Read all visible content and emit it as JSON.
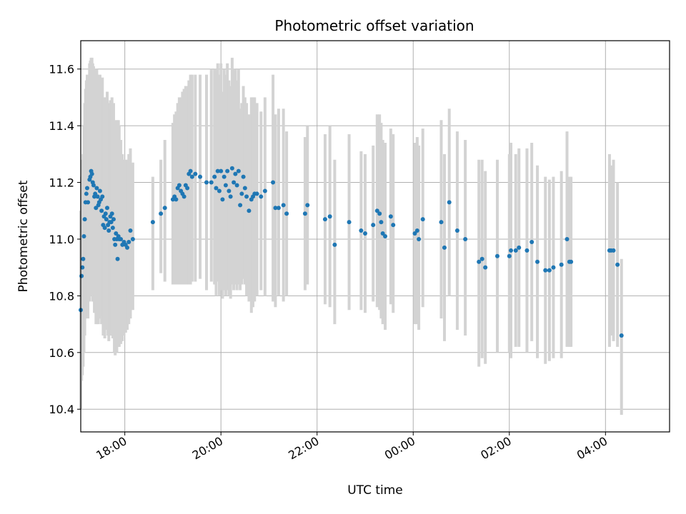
{
  "chart_data": {
    "type": "scatter",
    "title": "Photometric offset variation",
    "xlabel": "UTC time",
    "ylabel": "Photometric offset",
    "x_tick_labels": [
      "18:00",
      "20:00",
      "22:00",
      "00:00",
      "02:00",
      "04:00"
    ],
    "x_tick_hours": [
      18,
      20,
      22,
      24,
      26,
      28
    ],
    "y_tick_labels": [
      "10.4",
      "10.6",
      "10.8",
      "11.0",
      "11.2",
      "11.4",
      "11.6"
    ],
    "y_ticks": [
      10.4,
      10.6,
      10.8,
      11.0,
      11.2,
      11.4,
      11.6
    ],
    "xlim": [
      "17:05",
      "29:20"
    ],
    "ylim": [
      10.32,
      11.7
    ],
    "grid": true,
    "colors": {
      "points": "#1f77b4",
      "errorbars": "#d3d3d3",
      "grid": "#b0b0b0"
    },
    "series": [
      {
        "values_note_hidden": "",
        "points": [
          [
            "17:05",
            10.75,
            10.4,
            11.1
          ],
          [
            "17:06",
            10.87,
            10.5,
            11.22
          ],
          [
            "17:07",
            10.9,
            10.52,
            11.28
          ],
          [
            "17:08",
            10.93,
            10.55,
            11.3
          ],
          [
            "17:09",
            11.01,
            10.6,
            11.4
          ],
          [
            "17:10",
            11.07,
            10.66,
            11.48
          ],
          [
            "17:11",
            11.13,
            10.72,
            11.53
          ],
          [
            "17:12",
            11.16,
            10.75,
            11.56
          ],
          [
            "17:13",
            11.18,
            10.76,
            11.58
          ],
          [
            "17:14",
            11.13,
            10.72,
            11.55
          ],
          [
            "17:16",
            11.21,
            10.78,
            11.62
          ],
          [
            "17:17",
            11.22,
            10.8,
            11.63
          ],
          [
            "17:18",
            11.24,
            10.82,
            11.64
          ],
          [
            "17:19",
            11.23,
            10.8,
            11.64
          ],
          [
            "17:20",
            11.2,
            10.78,
            11.62
          ],
          [
            "17:21",
            11.19,
            10.78,
            11.61
          ],
          [
            "17:22",
            11.15,
            10.74,
            11.58
          ],
          [
            "17:23",
            11.16,
            10.74,
            11.6
          ],
          [
            "17:24",
            11.11,
            10.7,
            11.55
          ],
          [
            "17:25",
            11.18,
            10.76,
            11.6
          ],
          [
            "17:26",
            11.15,
            10.73,
            11.58
          ],
          [
            "17:27",
            11.12,
            10.7,
            11.55
          ],
          [
            "17:28",
            11.13,
            10.72,
            11.56
          ],
          [
            "17:29",
            11.17,
            10.75,
            11.58
          ],
          [
            "17:30",
            11.14,
            10.72,
            11.56
          ],
          [
            "17:31",
            11.1,
            10.7,
            11.52
          ],
          [
            "17:32",
            11.15,
            10.73,
            11.57
          ],
          [
            "17:33",
            11.05,
            10.66,
            11.46
          ],
          [
            "17:34",
            11.08,
            10.68,
            11.5
          ],
          [
            "17:35",
            11.04,
            10.65,
            11.45
          ],
          [
            "17:36",
            11.09,
            10.68,
            11.5
          ],
          [
            "17:37",
            11.07,
            10.68,
            11.48
          ],
          [
            "17:38",
            11.11,
            10.7,
            11.52
          ],
          [
            "17:39",
            11.05,
            10.66,
            11.46
          ],
          [
            "17:40",
            11.03,
            10.64,
            11.44
          ],
          [
            "17:41",
            11.06,
            10.66,
            11.48
          ],
          [
            "17:42",
            11.08,
            10.68,
            11.49
          ],
          [
            "17:43",
            11.06,
            10.66,
            11.46
          ],
          [
            "17:44",
            11.09,
            10.68,
            11.5
          ],
          [
            "17:45",
            11.04,
            10.65,
            11.44
          ],
          [
            "17:46",
            11.07,
            10.67,
            11.48
          ],
          [
            "17:47",
            11.0,
            10.6,
            11.4
          ],
          [
            "17:48",
            10.98,
            10.59,
            11.38
          ],
          [
            "17:49",
            11.02,
            10.62,
            11.42
          ],
          [
            "17:50",
            11.0,
            10.6,
            11.4
          ],
          [
            "17:51",
            10.93,
            10.62,
            11.3
          ],
          [
            "17:52",
            11.01,
            10.62,
            11.42
          ],
          [
            "17:53",
            11.0,
            10.62,
            11.4
          ],
          [
            "17:55",
            11.0,
            10.63,
            11.35
          ],
          [
            "17:57",
            10.98,
            10.64,
            11.3
          ],
          [
            "17:59",
            10.99,
            10.66,
            11.28
          ],
          [
            "18:01",
            10.98,
            10.67,
            11.28
          ],
          [
            "18:03",
            10.97,
            10.68,
            11.28
          ],
          [
            "18:05",
            10.99,
            10.7,
            11.3
          ],
          [
            "18:07",
            11.03,
            10.72,
            11.32
          ],
          [
            "18:10",
            11.0,
            10.75,
            11.27
          ],
          [
            "18:35",
            11.06,
            10.82,
            11.22
          ],
          [
            "18:45",
            11.09,
            10.88,
            11.28
          ],
          [
            "18:50",
            11.11,
            10.85,
            11.35
          ],
          [
            "19:00",
            11.14,
            10.84,
            11.41
          ],
          [
            "19:02",
            11.15,
            10.84,
            11.44
          ],
          [
            "19:04",
            11.14,
            10.84,
            11.45
          ],
          [
            "19:06",
            11.18,
            10.84,
            11.48
          ],
          [
            "19:08",
            11.19,
            10.84,
            11.5
          ],
          [
            "19:10",
            11.17,
            10.84,
            11.5
          ],
          [
            "19:12",
            11.16,
            10.84,
            11.52
          ],
          [
            "19:14",
            11.15,
            10.84,
            11.53
          ],
          [
            "19:16",
            11.19,
            10.84,
            11.54
          ],
          [
            "19:18",
            11.18,
            10.84,
            11.54
          ],
          [
            "19:20",
            11.23,
            10.84,
            11.56
          ],
          [
            "19:22",
            11.24,
            10.84,
            11.58
          ],
          [
            "19:24",
            11.22,
            10.85,
            11.58
          ],
          [
            "19:28",
            11.23,
            10.85,
            11.58
          ],
          [
            "19:34",
            11.22,
            10.86,
            11.58
          ],
          [
            "19:42",
            11.2,
            10.82,
            11.58
          ],
          [
            "19:48",
            11.2,
            10.85,
            11.6
          ],
          [
            "19:52",
            11.22,
            10.84,
            11.6
          ],
          [
            "19:54",
            11.18,
            10.8,
            11.6
          ],
          [
            "19:56",
            11.24,
            10.85,
            11.62
          ],
          [
            "19:58",
            11.17,
            10.8,
            11.58
          ],
          [
            "20:00",
            11.24,
            10.82,
            11.62
          ],
          [
            "20:02",
            11.14,
            10.79,
            11.52
          ],
          [
            "20:04",
            11.22,
            10.82,
            11.6
          ],
          [
            "20:06",
            11.19,
            10.8,
            11.58
          ],
          [
            "20:08",
            11.24,
            10.82,
            11.62
          ],
          [
            "20:10",
            11.17,
            10.8,
            11.56
          ],
          [
            "20:12",
            11.15,
            10.79,
            11.54
          ],
          [
            "20:14",
            11.25,
            10.84,
            11.64
          ],
          [
            "20:16",
            11.2,
            10.82,
            11.6
          ],
          [
            "20:18",
            11.23,
            10.84,
            11.6
          ],
          [
            "20:20",
            11.19,
            10.82,
            11.56
          ],
          [
            "20:22",
            11.24,
            10.84,
            11.6
          ],
          [
            "20:24",
            11.12,
            10.82,
            11.46
          ],
          [
            "20:26",
            11.16,
            10.84,
            11.48
          ],
          [
            "20:28",
            11.22,
            10.86,
            11.54
          ],
          [
            "20:30",
            11.18,
            10.84,
            11.5
          ],
          [
            "20:32",
            11.15,
            10.8,
            11.48
          ],
          [
            "20:35",
            11.1,
            10.78,
            11.44
          ],
          [
            "20:38",
            11.14,
            10.74,
            11.5
          ],
          [
            "20:40",
            11.15,
            10.76,
            11.5
          ],
          [
            "20:42",
            11.16,
            10.78,
            11.5
          ],
          [
            "20:45",
            11.16,
            10.8,
            11.48
          ],
          [
            "20:50",
            11.15,
            10.82,
            11.45
          ],
          [
            "20:55",
            11.17,
            10.8,
            11.5
          ],
          [
            "21:05",
            11.2,
            10.78,
            11.58
          ],
          [
            "21:08",
            11.11,
            10.76,
            11.44
          ],
          [
            "21:12",
            11.11,
            10.8,
            11.46
          ],
          [
            "21:18",
            11.12,
            10.78,
            11.46
          ],
          [
            "21:22",
            11.09,
            10.8,
            11.38
          ],
          [
            "21:45",
            11.09,
            10.82,
            11.36
          ],
          [
            "21:48",
            11.12,
            10.84,
            11.4
          ],
          [
            "22:10",
            11.07,
            10.77,
            11.37
          ],
          [
            "22:16",
            11.08,
            10.76,
            11.4
          ],
          [
            "22:22",
            10.98,
            10.7,
            11.28
          ],
          [
            "22:40",
            11.06,
            10.75,
            11.37
          ],
          [
            "22:55",
            11.03,
            10.75,
            11.31
          ],
          [
            "23:00",
            11.02,
            10.74,
            11.3
          ],
          [
            "23:10",
            11.05,
            10.78,
            11.33
          ],
          [
            "23:15",
            11.1,
            10.76,
            11.44
          ],
          [
            "23:18",
            11.09,
            10.75,
            11.44
          ],
          [
            "23:20",
            11.06,
            10.72,
            11.41
          ],
          [
            "23:22",
            11.02,
            10.7,
            11.35
          ],
          [
            "23:25",
            11.01,
            10.68,
            11.34
          ],
          [
            "23:32",
            11.08,
            10.77,
            11.39
          ],
          [
            "23:35",
            11.05,
            10.74,
            11.37
          ],
          [
            "24:02",
            11.02,
            10.7,
            11.34
          ],
          [
            "24:05",
            11.03,
            10.7,
            11.36
          ],
          [
            "24:07",
            11.0,
            10.68,
            11.33
          ],
          [
            "24:12",
            11.07,
            10.76,
            11.39
          ],
          [
            "24:35",
            11.06,
            10.72,
            11.42
          ],
          [
            "24:39",
            10.97,
            10.64,
            11.3
          ],
          [
            "24:45",
            11.13,
            10.8,
            11.46
          ],
          [
            "24:55",
            11.03,
            10.68,
            11.38
          ],
          [
            "25:05",
            11.0,
            10.66,
            11.35
          ],
          [
            "25:22",
            10.92,
            10.55,
            11.28
          ],
          [
            "25:26",
            10.93,
            10.58,
            11.28
          ],
          [
            "25:30",
            10.9,
            10.56,
            11.24
          ],
          [
            "25:45",
            10.94,
            10.6,
            11.28
          ],
          [
            "26:00",
            10.94,
            10.6,
            11.3
          ],
          [
            "26:02",
            10.96,
            10.58,
            11.34
          ],
          [
            "26:08",
            10.96,
            10.62,
            11.3
          ],
          [
            "26:12",
            10.97,
            10.62,
            11.32
          ],
          [
            "26:22",
            10.96,
            10.6,
            11.32
          ],
          [
            "26:28",
            10.99,
            10.64,
            11.34
          ],
          [
            "26:35",
            10.92,
            10.58,
            11.26
          ],
          [
            "26:45",
            10.89,
            10.56,
            11.22
          ],
          [
            "26:50",
            10.89,
            10.57,
            11.21
          ],
          [
            "26:55",
            10.9,
            10.58,
            11.22
          ],
          [
            "27:05",
            10.91,
            10.58,
            11.24
          ],
          [
            "27:12",
            11.0,
            10.62,
            11.38
          ],
          [
            "27:15",
            10.92,
            10.62,
            11.22
          ],
          [
            "27:17",
            10.92,
            10.62,
            11.22
          ],
          [
            "28:05",
            10.96,
            10.62,
            11.3
          ],
          [
            "28:07",
            10.96,
            10.66,
            11.26
          ],
          [
            "28:10",
            10.96,
            10.64,
            11.28
          ],
          [
            "28:15",
            10.91,
            10.62,
            11.2
          ],
          [
            "28:20",
            10.66,
            10.38,
            10.93
          ]
        ]
      }
    ]
  }
}
